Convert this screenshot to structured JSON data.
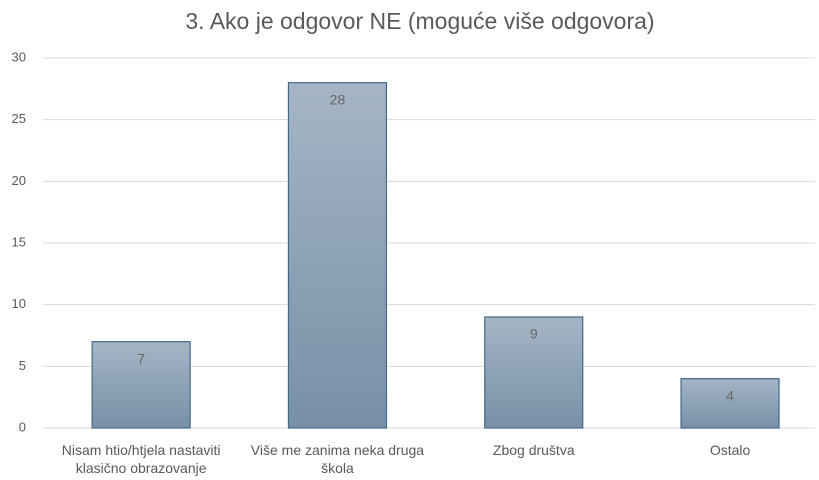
{
  "chart_data": {
    "type": "bar",
    "title": "3. Ako je odgovor NE (moguće više odgovora)",
    "categories": [
      "Nisam htio/htjela nastaviti klasično obrazovanje",
      "Više me zanima neka druga škola",
      "Zbog društva",
      "Ostalo"
    ],
    "values": [
      7,
      28,
      9,
      4
    ],
    "color": "#8ba0b5",
    "ylim": [
      0,
      30
    ],
    "yticks": [
      0,
      5,
      10,
      15,
      20,
      25,
      30
    ],
    "grid": true,
    "data_labels": true
  }
}
